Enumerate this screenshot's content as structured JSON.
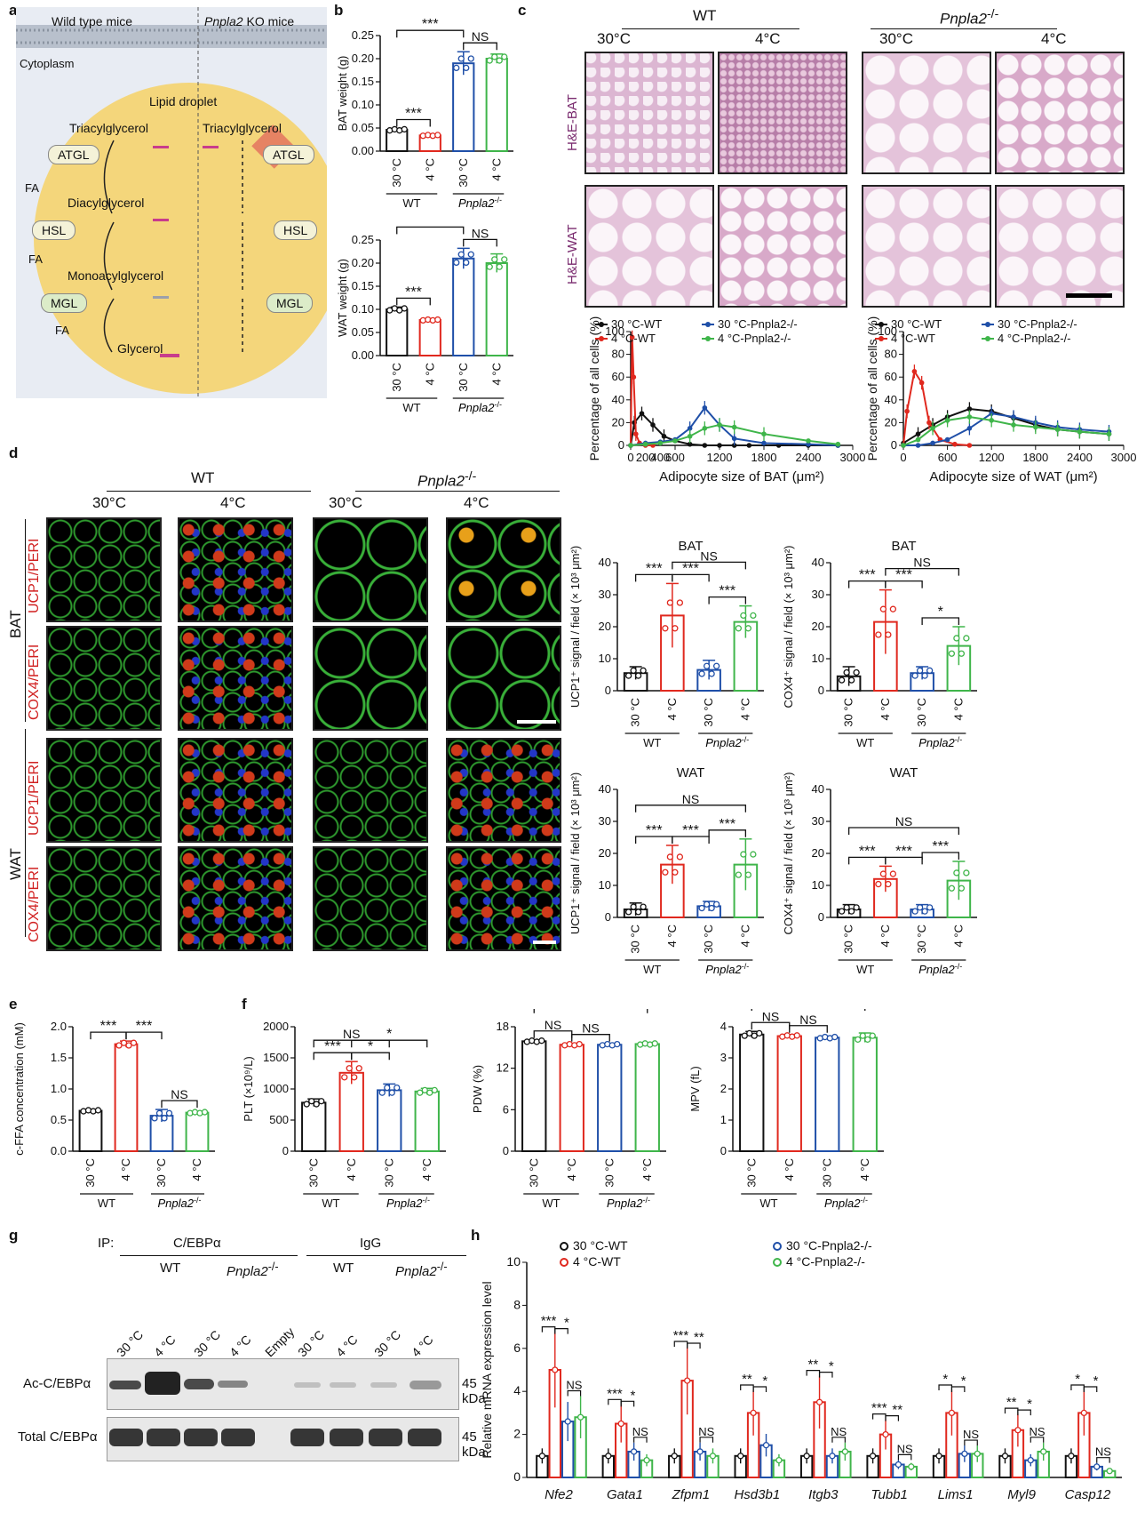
{
  "panel_letters": {
    "a": "a",
    "b": "b",
    "c": "c",
    "d": "d",
    "e": "e",
    "f": "f",
    "g": "g",
    "h": "h"
  },
  "panel_a": {
    "wild_type": "Wild type mice",
    "ko_gene": "Pnpla2",
    "ko_suffix": " KO mice",
    "cytoplasm": "Cytoplasm",
    "lipid_droplet": "Lipid droplet",
    "tag_left": "Triacylglycerol",
    "tag_right": "Triacylglycerol",
    "dag": "Diacylglycerol",
    "mag": "Monoacylglycerol",
    "glycerol": "Glycerol",
    "atgl": "ATGL",
    "hsl": "HSL",
    "mgl": "MGL",
    "fa": "FA"
  },
  "group_labels": {
    "t30": "30 °C",
    "t4": "4 °C",
    "wt": "WT",
    "ko": "Pnpla2",
    "ko_sup": "-/-",
    "empty": "Empty"
  },
  "sig": {
    "three": "***",
    "two": "**",
    "one": "*",
    "ns": "NS"
  },
  "panel_c": {
    "wt": "WT",
    "ko": "Pnpla2",
    "ko_sup": "-/-",
    "t30": "30°C",
    "t4": "4°C",
    "he_bat": "H&E-BAT",
    "he_wat": "H&E-WAT",
    "legend": [
      "30 °C-WT",
      "4 °C-WT",
      "30 °C-Pnpla2-/-",
      "4 °C-Pnpla2-/-"
    ]
  },
  "panel_d": {
    "wt": "WT",
    "ko": "Pnpla2",
    "ko_sup": "-/-",
    "t30": "30°C",
    "t4": "4°C",
    "bat": "BAT",
    "wat": "WAT",
    "row1": "UCP1/PERI",
    "row2": "COX4/PERI",
    "row3": "UCP1/PERI",
    "row4": "COX4/PERI"
  },
  "panel_g": {
    "ip": "IP:",
    "cebpa": "C/EBPα",
    "igg": "IgG",
    "wt": "WT",
    "ko": "Pnpla2",
    "ko_sup": "-/-",
    "row1": "Ac-C/EBPα",
    "row2": "Total C/EBPα",
    "kda1": "45 kDa",
    "kda2": "45 kDa",
    "lanes": [
      "30 °C",
      "4 °C",
      "30 °C",
      "4 °C",
      "Empty",
      "30 °C",
      "4 °C",
      "30 °C",
      "4 °C"
    ]
  },
  "colors": {
    "wt30": "#111111",
    "wt4": "#e0281e",
    "ko30": "#1f4fa8",
    "ko4": "#3fb54a"
  },
  "chart_data": [
    {
      "id": "b1",
      "type": "bar",
      "ylabel": "BAT weight (g)",
      "ylim": [
        0,
        0.25
      ],
      "yticks": [
        "0.00",
        "0.05",
        "0.10",
        "0.15",
        "0.20",
        "0.25"
      ],
      "values": [
        0.046,
        0.034,
        0.19,
        0.2
      ],
      "errors": [
        0.003,
        0.002,
        0.025,
        0.01
      ],
      "brackets": [
        {
          "a": 0,
          "b": 1,
          "t": "***"
        },
        {
          "a": 0,
          "b": 2,
          "t": "***"
        },
        {
          "a": 2,
          "b": 3,
          "t": "NS"
        }
      ]
    },
    {
      "id": "b2",
      "type": "bar",
      "ylabel": "WAT weight (g)",
      "ylim": [
        0,
        0.25
      ],
      "yticks": [
        "0.00",
        "0.05",
        "0.10",
        "0.15",
        "0.20",
        "0.25"
      ],
      "values": [
        0.1,
        0.077,
        0.21,
        0.2
      ],
      "errors": [
        0.005,
        0.002,
        0.022,
        0.02
      ],
      "brackets": [
        {
          "a": 0,
          "b": 1,
          "t": "***"
        },
        {
          "a": 0,
          "b": 2,
          "t": "***"
        },
        {
          "a": 2,
          "b": 3,
          "t": "NS"
        }
      ]
    },
    {
      "id": "c1",
      "type": "line",
      "xlabel": "Adipocyte size of BAT (μm²)",
      "ylabel": "Percentage of all cells (%)",
      "xlim": [
        0,
        3000
      ],
      "ylim": [
        0,
        100
      ],
      "xticks": [
        "0",
        "600",
        "1200",
        "1800",
        "2400",
        "3000"
      ],
      "xticks_minor": [
        "200",
        "400"
      ],
      "yticks": [
        "0",
        "20",
        "40",
        "60",
        "80",
        "100"
      ],
      "series": [
        {
          "name": "30 °C-WT",
          "color": "#111111",
          "x": [
            0,
            50,
            150,
            300,
            450,
            600,
            800,
            1000,
            1200,
            1400,
            1600,
            2000,
            2400,
            2800
          ],
          "y": [
            0,
            20,
            28,
            18,
            8,
            4,
            1,
            0,
            0,
            0,
            0,
            0,
            0,
            0
          ]
        },
        {
          "name": "4 °C-WT",
          "color": "#e0281e",
          "x": [
            0,
            20,
            40,
            70,
            120,
            200,
            300
          ],
          "y": [
            0,
            95,
            60,
            10,
            2,
            0,
            0
          ]
        },
        {
          "name": "30 °C-Pnpla2-/-",
          "color": "#1f4fa8",
          "x": [
            0,
            200,
            400,
            600,
            800,
            1000,
            1200,
            1400,
            1800,
            2400,
            2800
          ],
          "y": [
            0,
            2,
            3,
            5,
            15,
            33,
            18,
            6,
            2,
            1,
            0
          ]
        },
        {
          "name": "4 °C-Pnpla2-/-",
          "color": "#3fb54a",
          "x": [
            0,
            200,
            400,
            600,
            800,
            1000,
            1200,
            1400,
            1800,
            2400,
            2800
          ],
          "y": [
            0,
            1,
            2,
            4,
            8,
            15,
            18,
            16,
            10,
            4,
            1
          ]
        }
      ]
    },
    {
      "id": "c2",
      "type": "line",
      "xlabel": "Adipocyte size of WAT (μm²)",
      "ylabel": "Percentage of all cells (%)",
      "xlim": [
        0,
        3000
      ],
      "ylim": [
        0,
        100
      ],
      "xticks": [
        "0",
        "600",
        "1200",
        "1800",
        "2400",
        "3000"
      ],
      "yticks": [
        "0",
        "20",
        "40",
        "60",
        "80",
        "100"
      ],
      "series": [
        {
          "name": "30 °C-WT",
          "color": "#111111",
          "x": [
            0,
            200,
            400,
            600,
            900,
            1200,
            1500,
            1800,
            2100,
            2400,
            2800
          ],
          "y": [
            2,
            10,
            18,
            25,
            32,
            30,
            24,
            18,
            14,
            12,
            10
          ]
        },
        {
          "name": "4 °C-WT",
          "color": "#e0281e",
          "x": [
            0,
            50,
            150,
            250,
            350,
            500,
            700,
            900
          ],
          "y": [
            0,
            30,
            65,
            55,
            20,
            5,
            1,
            0
          ]
        },
        {
          "name": "30 °C-Pnpla2-/-",
          "color": "#1f4fa8",
          "x": [
            0,
            200,
            400,
            600,
            900,
            1200,
            1500,
            1800,
            2100,
            2400,
            2800
          ],
          "y": [
            0,
            0,
            2,
            5,
            15,
            28,
            25,
            20,
            16,
            14,
            12
          ]
        },
        {
          "name": "4 °C-Pnpla2-/-",
          "color": "#3fb54a",
          "x": [
            0,
            200,
            400,
            600,
            900,
            1200,
            1500,
            1800,
            2100,
            2400,
            2800
          ],
          "y": [
            0,
            5,
            15,
            22,
            25,
            22,
            18,
            16,
            14,
            12,
            10
          ]
        }
      ]
    },
    {
      "id": "d1",
      "type": "bar",
      "title": "BAT",
      "ylabel": "UCP1⁺ signal / field (× 10³ μm²)",
      "ylim": [
        0,
        40
      ],
      "yticks": [
        "0",
        "10",
        "20",
        "30",
        "40"
      ],
      "values": [
        5.5,
        23.5,
        6.5,
        21.5
      ],
      "errors": [
        2,
        10,
        3,
        5
      ],
      "brackets": [
        {
          "a": 0,
          "b": 1,
          "t": "***"
        },
        {
          "a": 1,
          "b": 2,
          "t": "***"
        },
        {
          "a": 1,
          "b": 3,
          "t": "NS"
        },
        {
          "a": 2,
          "b": 3,
          "t": "***"
        }
      ]
    },
    {
      "id": "d2",
      "type": "bar",
      "title": "BAT",
      "ylabel": "COX4⁺ signal / field (× 10³ μm²)",
      "ylim": [
        0,
        40
      ],
      "yticks": [
        "0",
        "10",
        "20",
        "30",
        "40"
      ],
      "values": [
        4.5,
        21.5,
        5.5,
        14
      ],
      "errors": [
        3,
        10,
        2,
        6
      ],
      "brackets": [
        {
          "a": 0,
          "b": 1,
          "t": "***"
        },
        {
          "a": 1,
          "b": 2,
          "t": "***"
        },
        {
          "a": 1,
          "b": 3,
          "t": "NS"
        },
        {
          "a": 2,
          "b": 3,
          "t": "*"
        }
      ]
    },
    {
      "id": "d3",
      "type": "bar",
      "title": "WAT",
      "ylabel": "UCP1⁺ signal / field (× 10³ μm²)",
      "ylim": [
        0,
        40
      ],
      "yticks": [
        "0",
        "10",
        "20",
        "30",
        "40"
      ],
      "values": [
        2.5,
        16.5,
        3.5,
        16.5
      ],
      "errors": [
        2,
        6,
        1.5,
        8
      ],
      "brackets": [
        {
          "a": 0,
          "b": 1,
          "t": "***"
        },
        {
          "a": 1,
          "b": 2,
          "t": "***"
        },
        {
          "a": 0,
          "b": 3,
          "t": "NS"
        },
        {
          "a": 2,
          "b": 3,
          "t": "***"
        }
      ]
    },
    {
      "id": "d4",
      "type": "bar",
      "title": "WAT",
      "ylabel": "COX4⁺ signal / field (× 10³ μm²)",
      "ylim": [
        0,
        40
      ],
      "yticks": [
        "0",
        "10",
        "20",
        "30",
        "40"
      ],
      "values": [
        2.5,
        12,
        2.5,
        11.5
      ],
      "errors": [
        1.5,
        4,
        1.5,
        6
      ],
      "brackets": [
        {
          "a": 0,
          "b": 1,
          "t": "***"
        },
        {
          "a": 1,
          "b": 2,
          "t": "***"
        },
        {
          "a": 0,
          "b": 3,
          "t": "NS"
        },
        {
          "a": 2,
          "b": 3,
          "t": "***"
        }
      ]
    },
    {
      "id": "e1",
      "type": "bar",
      "ylabel": "c-FFA concentration (mM)",
      "ylim": [
        0,
        2
      ],
      "yticks": [
        "0.0",
        "0.5",
        "1.0",
        "1.5",
        "2.0"
      ],
      "values": [
        0.65,
        1.72,
        0.57,
        0.62
      ],
      "errors": [
        0.02,
        0.05,
        0.1,
        0.02
      ],
      "brackets": [
        {
          "a": 0,
          "b": 1,
          "t": "***"
        },
        {
          "a": 1,
          "b": 2,
          "t": "***"
        },
        {
          "a": 2,
          "b": 3,
          "t": "NS"
        }
      ]
    },
    {
      "id": "f1",
      "type": "bar",
      "ylabel": "PLT (×10⁹/L)",
      "ylim": [
        0,
        2000
      ],
      "yticks": [
        "0",
        "500",
        "1000",
        "1500",
        "2000"
      ],
      "values": [
        780,
        1260,
        980,
        960
      ],
      "errors": [
        60,
        180,
        100,
        50
      ],
      "brackets": [
        {
          "a": 0,
          "b": 1,
          "t": "***"
        },
        {
          "a": 1,
          "b": 2,
          "t": "*"
        },
        {
          "a": 1,
          "b": 3,
          "t": "*"
        },
        {
          "a": 0,
          "b": 2,
          "t": "NS"
        }
      ]
    },
    {
      "id": "f2",
      "type": "bar",
      "ylabel": "PDW (%)",
      "ylim": [
        0,
        18
      ],
      "yticks": [
        "0",
        "6",
        "12",
        "18"
      ],
      "values": [
        15.9,
        15.4,
        15.4,
        15.5
      ],
      "errors": [
        0.2,
        0.2,
        0.2,
        0.2
      ],
      "brackets": [
        {
          "a": 0,
          "b": 1,
          "t": "NS"
        },
        {
          "a": 1,
          "b": 2,
          "t": "NS"
        },
        {
          "a": 0,
          "b": 3,
          "t": "NS"
        }
      ]
    },
    {
      "id": "f3",
      "type": "bar",
      "ylabel": "MPV (fL)",
      "ylim": [
        0,
        4
      ],
      "yticks": [
        "0",
        "1",
        "2",
        "3",
        "4"
      ],
      "values": [
        3.75,
        3.7,
        3.65,
        3.65
      ],
      "errors": [
        0.1,
        0.05,
        0.05,
        0.15
      ],
      "brackets": [
        {
          "a": 0,
          "b": 1,
          "t": "NS"
        },
        {
          "a": 1,
          "b": 2,
          "t": "NS"
        },
        {
          "a": 0,
          "b": 3,
          "t": "NS"
        }
      ]
    },
    {
      "id": "h1",
      "type": "bar",
      "ylabel": "Relative mRNA expression level",
      "ylim": [
        0,
        10
      ],
      "yticks": [
        "0",
        "2",
        "4",
        "6",
        "8",
        "10"
      ],
      "legend": [
        "30 °C-WT",
        "4 °C-WT",
        "30 °C-Pnpla2-/-",
        "4 °C-Pnpla2-/-"
      ],
      "categories": [
        "Nfe2",
        "Gata1",
        "Zfpm1",
        "Hsd3b1",
        "Itgb3",
        "Tubb1",
        "Lims1",
        "Myl9",
        "Casp12"
      ],
      "series": [
        {
          "name": "30 °C-WT",
          "values": [
            1,
            1,
            1,
            1,
            1,
            1,
            1,
            1,
            1
          ]
        },
        {
          "name": "4 °C-WT",
          "values": [
            5,
            2.5,
            4.5,
            3,
            3.5,
            2,
            3,
            2.2,
            3
          ]
        },
        {
          "name": "30 °C-Pnpla2-/-",
          "values": [
            2.6,
            1.2,
            1.2,
            1.5,
            1,
            0.6,
            1.1,
            0.8,
            0.5
          ]
        },
        {
          "name": "4 °C-Pnpla2-/-",
          "values": [
            2.8,
            0.8,
            1,
            0.8,
            1.2,
            0.5,
            1.1,
            1.2,
            0.3
          ]
        }
      ],
      "sig": [
        [
          "***",
          "*",
          "NS"
        ],
        [
          "***",
          "*",
          "NS"
        ],
        [
          "***",
          "**",
          "NS"
        ],
        [
          "**",
          "*"
        ],
        [
          "**",
          "*",
          "NS"
        ],
        [
          "***",
          "**",
          "NS"
        ],
        [
          "*",
          "*",
          "NS"
        ],
        [
          "**",
          "*",
          "NS"
        ],
        [
          "*",
          "*",
          "NS"
        ]
      ]
    }
  ]
}
